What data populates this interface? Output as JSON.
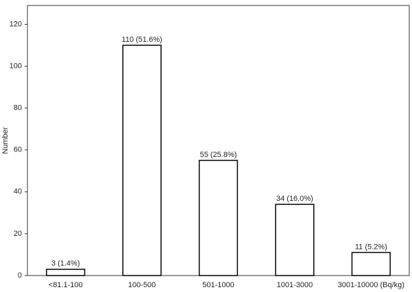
{
  "chart_data": {
    "type": "bar",
    "y_label": "Number",
    "categories": [
      "<81.1-100",
      "100-500",
      "501-1000",
      "1001-3000",
      "3001-10000 (Bq/kg)"
    ],
    "values": [
      3,
      110,
      55,
      34,
      11
    ],
    "value_labels": [
      "3 (1.4%)",
      "110 (51.6%)",
      "55 (25.8%)",
      "34 (16.0%)",
      "11 (5.2%)"
    ],
    "color": "#ffffff",
    "ylim": [
      0,
      129
    ],
    "yticks": [
      0,
      20,
      40,
      60,
      80,
      100,
      120
    ],
    "grid": false
  }
}
